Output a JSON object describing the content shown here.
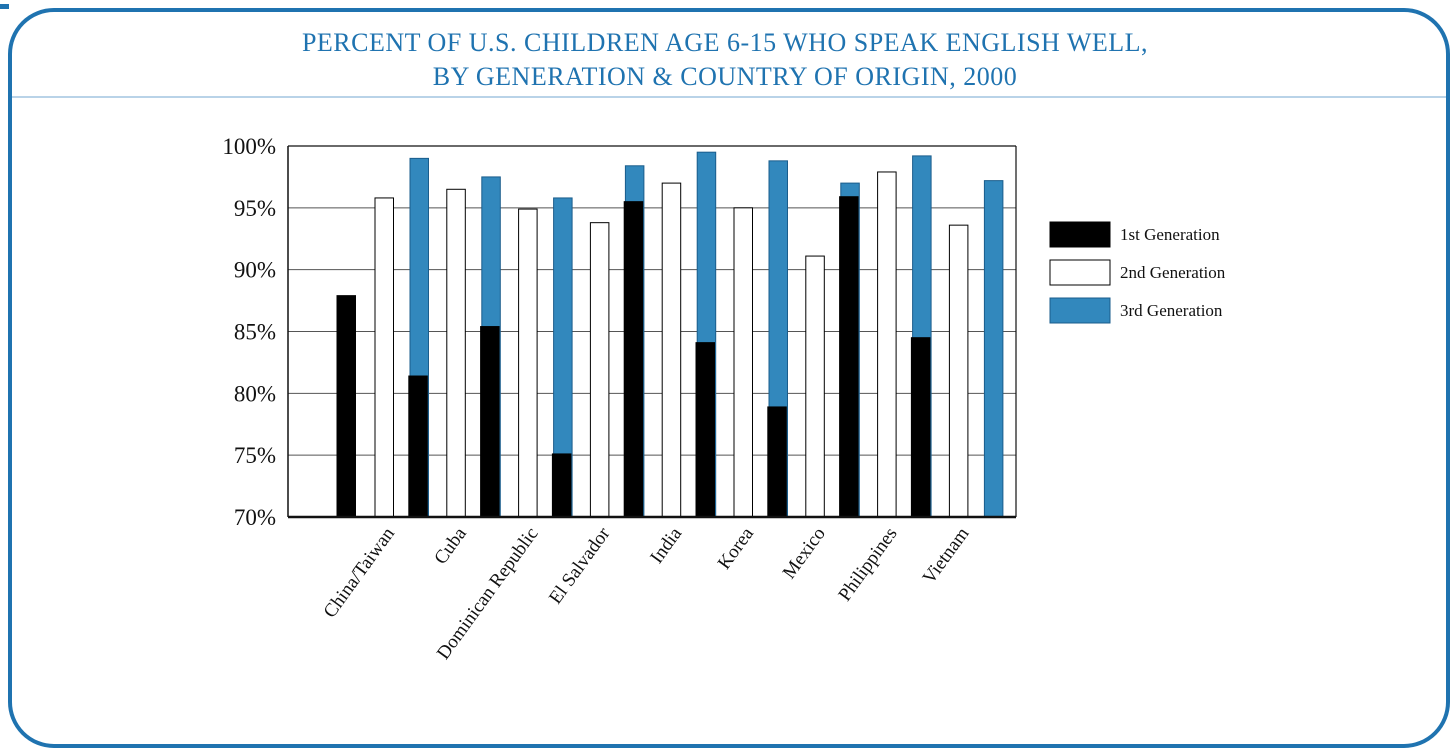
{
  "chart_data": {
    "type": "bar",
    "title_line1": "PERCENT OF U.S. CHILDREN AGE 6-15 WHO SPEAK ENGLISH WELL,",
    "title_line2": "BY GENERATION & COUNTRY OF ORIGIN, 2000",
    "categories": [
      "China/Taiwan",
      "Cuba",
      "Dominican Republic",
      "El Salvador",
      "India",
      "Korea",
      "Mexico",
      "Philippines",
      "Vietnam"
    ],
    "series": [
      {
        "name": "1st Generation",
        "color": "#000000",
        "values": [
          87.9,
          81.4,
          85.4,
          75.1,
          95.5,
          84.1,
          78.9,
          95.9,
          84.5
        ]
      },
      {
        "name": "2nd Generation",
        "color": "#ffffff",
        "values": [
          95.8,
          96.5,
          94.9,
          93.8,
          97.0,
          95.0,
          91.1,
          97.9,
          93.6
        ]
      },
      {
        "name": "3rd Generation",
        "color": "#3288bd",
        "values": [
          99.0,
          97.5,
          95.8,
          98.4,
          99.5,
          98.8,
          97.0,
          99.2,
          97.2
        ]
      }
    ],
    "ylim": [
      70,
      100
    ],
    "y_ticks": [
      "70%",
      "75%",
      "80%",
      "85%",
      "90%",
      "95%",
      "100%"
    ],
    "legend_position": "right",
    "grid": true,
    "accent_color": "#1f73b0"
  }
}
